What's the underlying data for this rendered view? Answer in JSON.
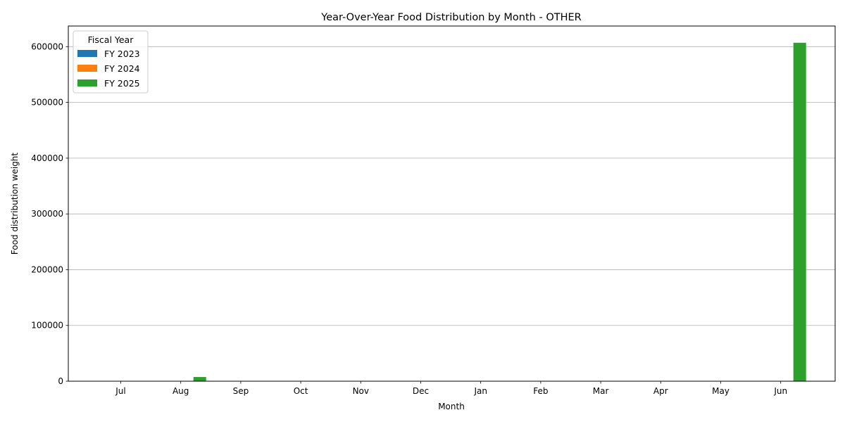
{
  "chart_data": {
    "type": "bar",
    "title": "Year-Over-Year Food Distribution by Month - OTHER",
    "xlabel": "Month",
    "ylabel": "Food distribution weight",
    "categories": [
      "Jul",
      "Aug",
      "Sep",
      "Oct",
      "Nov",
      "Dec",
      "Jan",
      "Feb",
      "Mar",
      "Apr",
      "May",
      "Jun"
    ],
    "series": [
      {
        "name": "FY 2023",
        "color": "#1f77b4",
        "values": [
          0,
          0,
          0,
          0,
          0,
          0,
          0,
          0,
          0,
          0,
          0,
          0
        ]
      },
      {
        "name": "FY 2024",
        "color": "#ff7f0e",
        "values": [
          0,
          0,
          0,
          0,
          0,
          0,
          0,
          0,
          0,
          0,
          0,
          0
        ]
      },
      {
        "name": "FY 2025",
        "color": "#2ca02c",
        "values": [
          0,
          7500,
          0,
          0,
          0,
          0,
          0,
          0,
          0,
          0,
          0,
          607000
        ]
      }
    ],
    "ylim": [
      0,
      637000
    ],
    "yticks": [
      0,
      100000,
      200000,
      300000,
      400000,
      500000,
      600000
    ],
    "ytick_labels": [
      "0",
      "100000",
      "200000",
      "300000",
      "400000",
      "500000",
      "600000"
    ],
    "grid": "y",
    "legend": {
      "title": "Fiscal Year",
      "placement": "upper-left"
    }
  }
}
